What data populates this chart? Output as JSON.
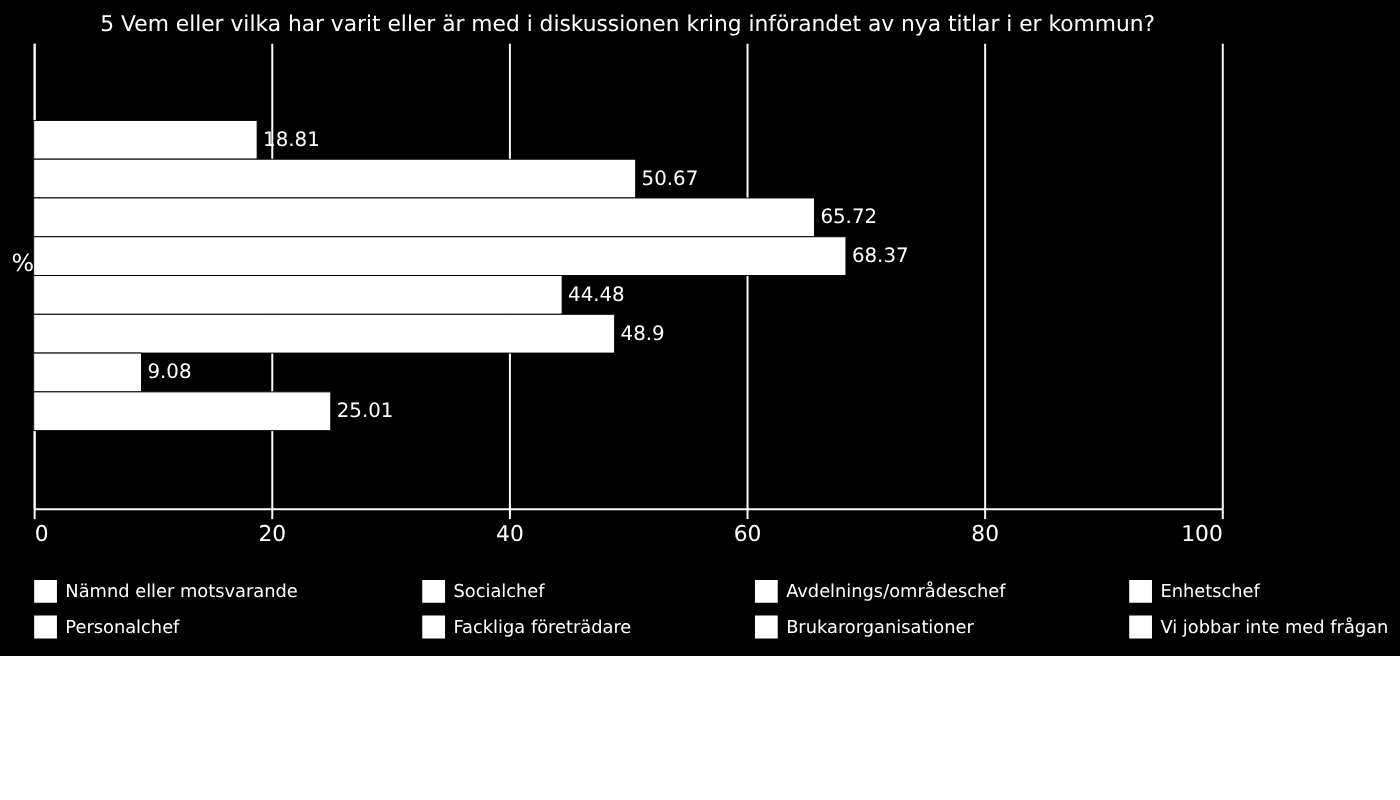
{
  "chart_data": {
    "type": "bar",
    "orientation": "horizontal",
    "title": "5 Vem eller vilka har varit eller är med i diskussionen kring införandet av nya titlar i er kommun?",
    "ylabel": "%",
    "categories": [
      null
    ],
    "series": [
      {
        "name": "Nämnd eller motsvarande",
        "color": "#ffffff",
        "values": [
          18.81
        ]
      },
      {
        "name": "Socialchef",
        "color": "#ffffff",
        "values": [
          50.67
        ]
      },
      {
        "name": "Avdelnings/områdeschef",
        "color": "#ffffff",
        "values": [
          65.72
        ]
      },
      {
        "name": "Enhetschef",
        "color": "#ffffff",
        "values": [
          68.37
        ]
      },
      {
        "name": "Personalchef",
        "color": "#ffffff",
        "values": [
          44.48
        ]
      },
      {
        "name": "Fackliga företrädare",
        "color": "#ffffff",
        "values": [
          48.9
        ]
      },
      {
        "name": "Brukarorganisationer",
        "color": "#ffffff",
        "values": [
          9.08
        ]
      },
      {
        "name": "Vi jobbar inte med frågan",
        "color": "#ffffff",
        "values": [
          25.01
        ]
      }
    ],
    "xlim": [
      0,
      100
    ],
    "xticks": [
      0,
      20,
      40,
      60,
      80,
      100
    ],
    "grid": "x",
    "legend": "bottom",
    "data_labels": true
  }
}
